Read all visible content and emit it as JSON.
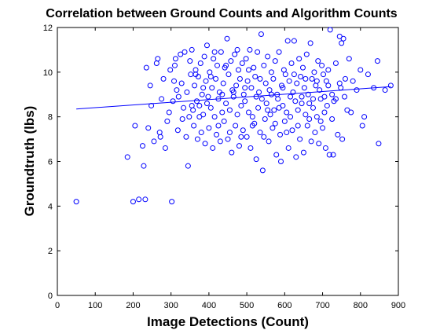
{
  "chart_data": {
    "type": "scatter",
    "title": "Correlation between Ground Counts and Algorithm Counts",
    "xlabel": "Image Detections (Count)",
    "ylabel": "Groundtruth (lbs)",
    "xlim": [
      0,
      900
    ],
    "ylim": [
      0,
      12
    ],
    "xticks": [
      "0",
      "100",
      "200",
      "300",
      "400",
      "500",
      "600",
      "700",
      "800",
      "900"
    ],
    "yticks": [
      "0",
      "2",
      "4",
      "6",
      "8",
      "10",
      "12"
    ],
    "grid": false,
    "marker_color": "#0000ff",
    "trendline": {
      "x": [
        50,
        880
      ],
      "y": [
        8.35,
        9.35
      ],
      "color": "#0000ff"
    },
    "points": [
      [
        50,
        4.2
      ],
      [
        185,
        6.2
      ],
      [
        200,
        4.2
      ],
      [
        205,
        7.6
      ],
      [
        215,
        4.3
      ],
      [
        225,
        6.7
      ],
      [
        228,
        5.8
      ],
      [
        232,
        4.3
      ],
      [
        235,
        10.2
      ],
      [
        240,
        7.5
      ],
      [
        245,
        9.4
      ],
      [
        248,
        8.5
      ],
      [
        255,
        6.9
      ],
      [
        262,
        10.4
      ],
      [
        265,
        10.6
      ],
      [
        270,
        7.3
      ],
      [
        272,
        7.1
      ],
      [
        275,
        8.8
      ],
      [
        280,
        9.7
      ],
      [
        285,
        6.6
      ],
      [
        290,
        7.8
      ],
      [
        295,
        8.2
      ],
      [
        298,
        10.1
      ],
      [
        302,
        4.2
      ],
      [
        305,
        8.7
      ],
      [
        308,
        9.6
      ],
      [
        310,
        10.3
      ],
      [
        312,
        10.6
      ],
      [
        315,
        9.2
      ],
      [
        318,
        7.4
      ],
      [
        320,
        8.9
      ],
      [
        325,
        10.8
      ],
      [
        328,
        9.5
      ],
      [
        330,
        7.9
      ],
      [
        333,
        8.4
      ],
      [
        336,
        10.9
      ],
      [
        340,
        7.1
      ],
      [
        342,
        9.1
      ],
      [
        345,
        5.8
      ],
      [
        348,
        8.0
      ],
      [
        350,
        10.5
      ],
      [
        352,
        9.9
      ],
      [
        355,
        11.0
      ],
      [
        358,
        8.3
      ],
      [
        360,
        7.6
      ],
      [
        362,
        9.4
      ],
      [
        365,
        10.1
      ],
      [
        368,
        8.7
      ],
      [
        370,
        7.0
      ],
      [
        372,
        9.8
      ],
      [
        375,
        8.5
      ],
      [
        378,
        10.4
      ],
      [
        380,
        7.3
      ],
      [
        382,
        9.0
      ],
      [
        385,
        8.1
      ],
      [
        388,
        10.7
      ],
      [
        390,
        6.8
      ],
      [
        392,
        9.6
      ],
      [
        395,
        11.2
      ],
      [
        398,
        8.9
      ],
      [
        400,
        7.5
      ],
      [
        402,
        10.0
      ],
      [
        405,
        8.4
      ],
      [
        408,
        9.3
      ],
      [
        410,
        6.6
      ],
      [
        412,
        10.6
      ],
      [
        415,
        8.0
      ],
      [
        418,
        9.7
      ],
      [
        420,
        7.2
      ],
      [
        422,
        10.3
      ],
      [
        425,
        8.8
      ],
      [
        428,
        9.1
      ],
      [
        430,
        6.9
      ],
      [
        432,
        10.9
      ],
      [
        435,
        8.2
      ],
      [
        438,
        9.5
      ],
      [
        440,
        7.8
      ],
      [
        442,
        10.2
      ],
      [
        445,
        8.6
      ],
      [
        448,
        11.5
      ],
      [
        450,
        7.0
      ],
      [
        452,
        9.9
      ],
      [
        455,
        8.3
      ],
      [
        458,
        10.5
      ],
      [
        460,
        6.4
      ],
      [
        462,
        9.2
      ],
      [
        465,
        8.9
      ],
      [
        468,
        10.8
      ],
      [
        470,
        7.6
      ],
      [
        472,
        9.4
      ],
      [
        475,
        8.1
      ],
      [
        478,
        10.1
      ],
      [
        480,
        6.7
      ],
      [
        482,
        9.7
      ],
      [
        485,
        8.5
      ],
      [
        488,
        10.4
      ],
      [
        490,
        7.4
      ],
      [
        492,
        9.0
      ],
      [
        495,
        8.7
      ],
      [
        498,
        10.6
      ],
      [
        500,
        7.1
      ],
      [
        502,
        9.6
      ],
      [
        505,
        8.2
      ],
      [
        508,
        11.0
      ],
      [
        510,
        6.6
      ],
      [
        512,
        9.3
      ],
      [
        515,
        8.0
      ],
      [
        518,
        10.2
      ],
      [
        520,
        7.7
      ],
      [
        522,
        9.8
      ],
      [
        525,
        6.1
      ],
      [
        528,
        10.9
      ],
      [
        530,
        8.4
      ],
      [
        532,
        9.1
      ],
      [
        535,
        7.3
      ],
      [
        538,
        11.7
      ],
      [
        540,
        8.8
      ],
      [
        542,
        5.6
      ],
      [
        545,
        10.3
      ],
      [
        548,
        7.9
      ],
      [
        550,
        9.5
      ],
      [
        552,
        8.6
      ],
      [
        555,
        10.7
      ],
      [
        558,
        6.9
      ],
      [
        560,
        9.2
      ],
      [
        562,
        8.1
      ],
      [
        565,
        10.0
      ],
      [
        568,
        7.5
      ],
      [
        570,
        9.7
      ],
      [
        572,
        8.3
      ],
      [
        575,
        10.5
      ],
      [
        578,
        6.3
      ],
      [
        580,
        9.0
      ],
      [
        582,
        8.8
      ],
      [
        585,
        10.9
      ],
      [
        588,
        7.2
      ],
      [
        590,
        6.0
      ],
      [
        592,
        9.4
      ],
      [
        595,
        8.5
      ],
      [
        598,
        10.1
      ],
      [
        600,
        7.8
      ],
      [
        602,
        9.9
      ],
      [
        605,
        8.2
      ],
      [
        608,
        11.4
      ],
      [
        610,
        6.6
      ],
      [
        612,
        9.6
      ],
      [
        615,
        8.0
      ],
      [
        618,
        10.4
      ],
      [
        620,
        7.4
      ],
      [
        622,
        9.1
      ],
      [
        625,
        11.4
      ],
      [
        628,
        8.7
      ],
      [
        630,
        6.2
      ],
      [
        632,
        9.5
      ],
      [
        635,
        8.3
      ],
      [
        638,
        10.6
      ],
      [
        640,
        7.0
      ],
      [
        642,
        9.8
      ],
      [
        645,
        8.9
      ],
      [
        648,
        10.2
      ],
      [
        650,
        6.4
      ],
      [
        652,
        9.3
      ],
      [
        655,
        8.1
      ],
      [
        658,
        10.8
      ],
      [
        660,
        7.6
      ],
      [
        662,
        9.0
      ],
      [
        665,
        8.6
      ],
      [
        668,
        11.3
      ],
      [
        670,
        6.9
      ],
      [
        672,
        9.7
      ],
      [
        675,
        8.4
      ],
      [
        678,
        10.0
      ],
      [
        680,
        7.3
      ],
      [
        682,
        9.4
      ],
      [
        685,
        8.0
      ],
      [
        688,
        10.5
      ],
      [
        690,
        6.8
      ],
      [
        692,
        9.2
      ],
      [
        695,
        8.8
      ],
      [
        698,
        10.3
      ],
      [
        700,
        7.5
      ],
      [
        702,
        9.9
      ],
      [
        705,
        8.2
      ],
      [
        708,
        6.6
      ],
      [
        710,
        9.6
      ],
      [
        712,
        8.5
      ],
      [
        715,
        10.1
      ],
      [
        718,
        6.3
      ],
      [
        720,
        11.9
      ],
      [
        725,
        9.0
      ],
      [
        728,
        6.3
      ],
      [
        730,
        8.7
      ],
      [
        735,
        10.4
      ],
      [
        740,
        7.2
      ],
      [
        745,
        11.6
      ],
      [
        748,
        9.3
      ],
      [
        750,
        11.3
      ],
      [
        752,
        7.0
      ],
      [
        755,
        11.5
      ],
      [
        758,
        8.9
      ],
      [
        760,
        9.7
      ],
      [
        765,
        8.3
      ],
      [
        770,
        10.6
      ],
      [
        775,
        8.2
      ],
      [
        780,
        9.6
      ],
      [
        790,
        9.2
      ],
      [
        800,
        10.1
      ],
      [
        805,
        7.6
      ],
      [
        810,
        8.0
      ],
      [
        820,
        9.9
      ],
      [
        835,
        9.3
      ],
      [
        845,
        10.5
      ],
      [
        848,
        6.8
      ],
      [
        865,
        9.2
      ],
      [
        880,
        9.4
      ],
      [
        395,
        8.6
      ],
      [
        405,
        9.8
      ],
      [
        415,
        10.9
      ],
      [
        425,
        7.6
      ],
      [
        435,
        9.0
      ],
      [
        445,
        10.3
      ],
      [
        455,
        7.3
      ],
      [
        465,
        9.1
      ],
      [
        475,
        11.0
      ],
      [
        485,
        7.1
      ],
      [
        495,
        9.3
      ],
      [
        505,
        10.1
      ],
      [
        515,
        7.6
      ],
      [
        525,
        8.9
      ],
      [
        535,
        9.7
      ],
      [
        545,
        7.1
      ],
      [
        555,
        8.3
      ],
      [
        565,
        9.0
      ],
      [
        575,
        7.7
      ],
      [
        585,
        8.4
      ],
      [
        595,
        9.3
      ],
      [
        605,
        7.3
      ],
      [
        615,
        8.9
      ],
      [
        625,
        9.9
      ],
      [
        635,
        7.6
      ],
      [
        645,
        8.6
      ],
      [
        655,
        9.7
      ],
      [
        665,
        7.9
      ],
      [
        675,
        8.8
      ],
      [
        685,
        9.6
      ],
      [
        695,
        7.8
      ],
      [
        705,
        8.9
      ],
      [
        715,
        9.4
      ],
      [
        725,
        7.9
      ],
      [
        735,
        8.8
      ],
      [
        745,
        9.5
      ],
      [
        365,
        9.9
      ],
      [
        375,
        8.0
      ],
      [
        385,
        9.3
      ],
      [
        355,
        8.5
      ]
    ]
  }
}
